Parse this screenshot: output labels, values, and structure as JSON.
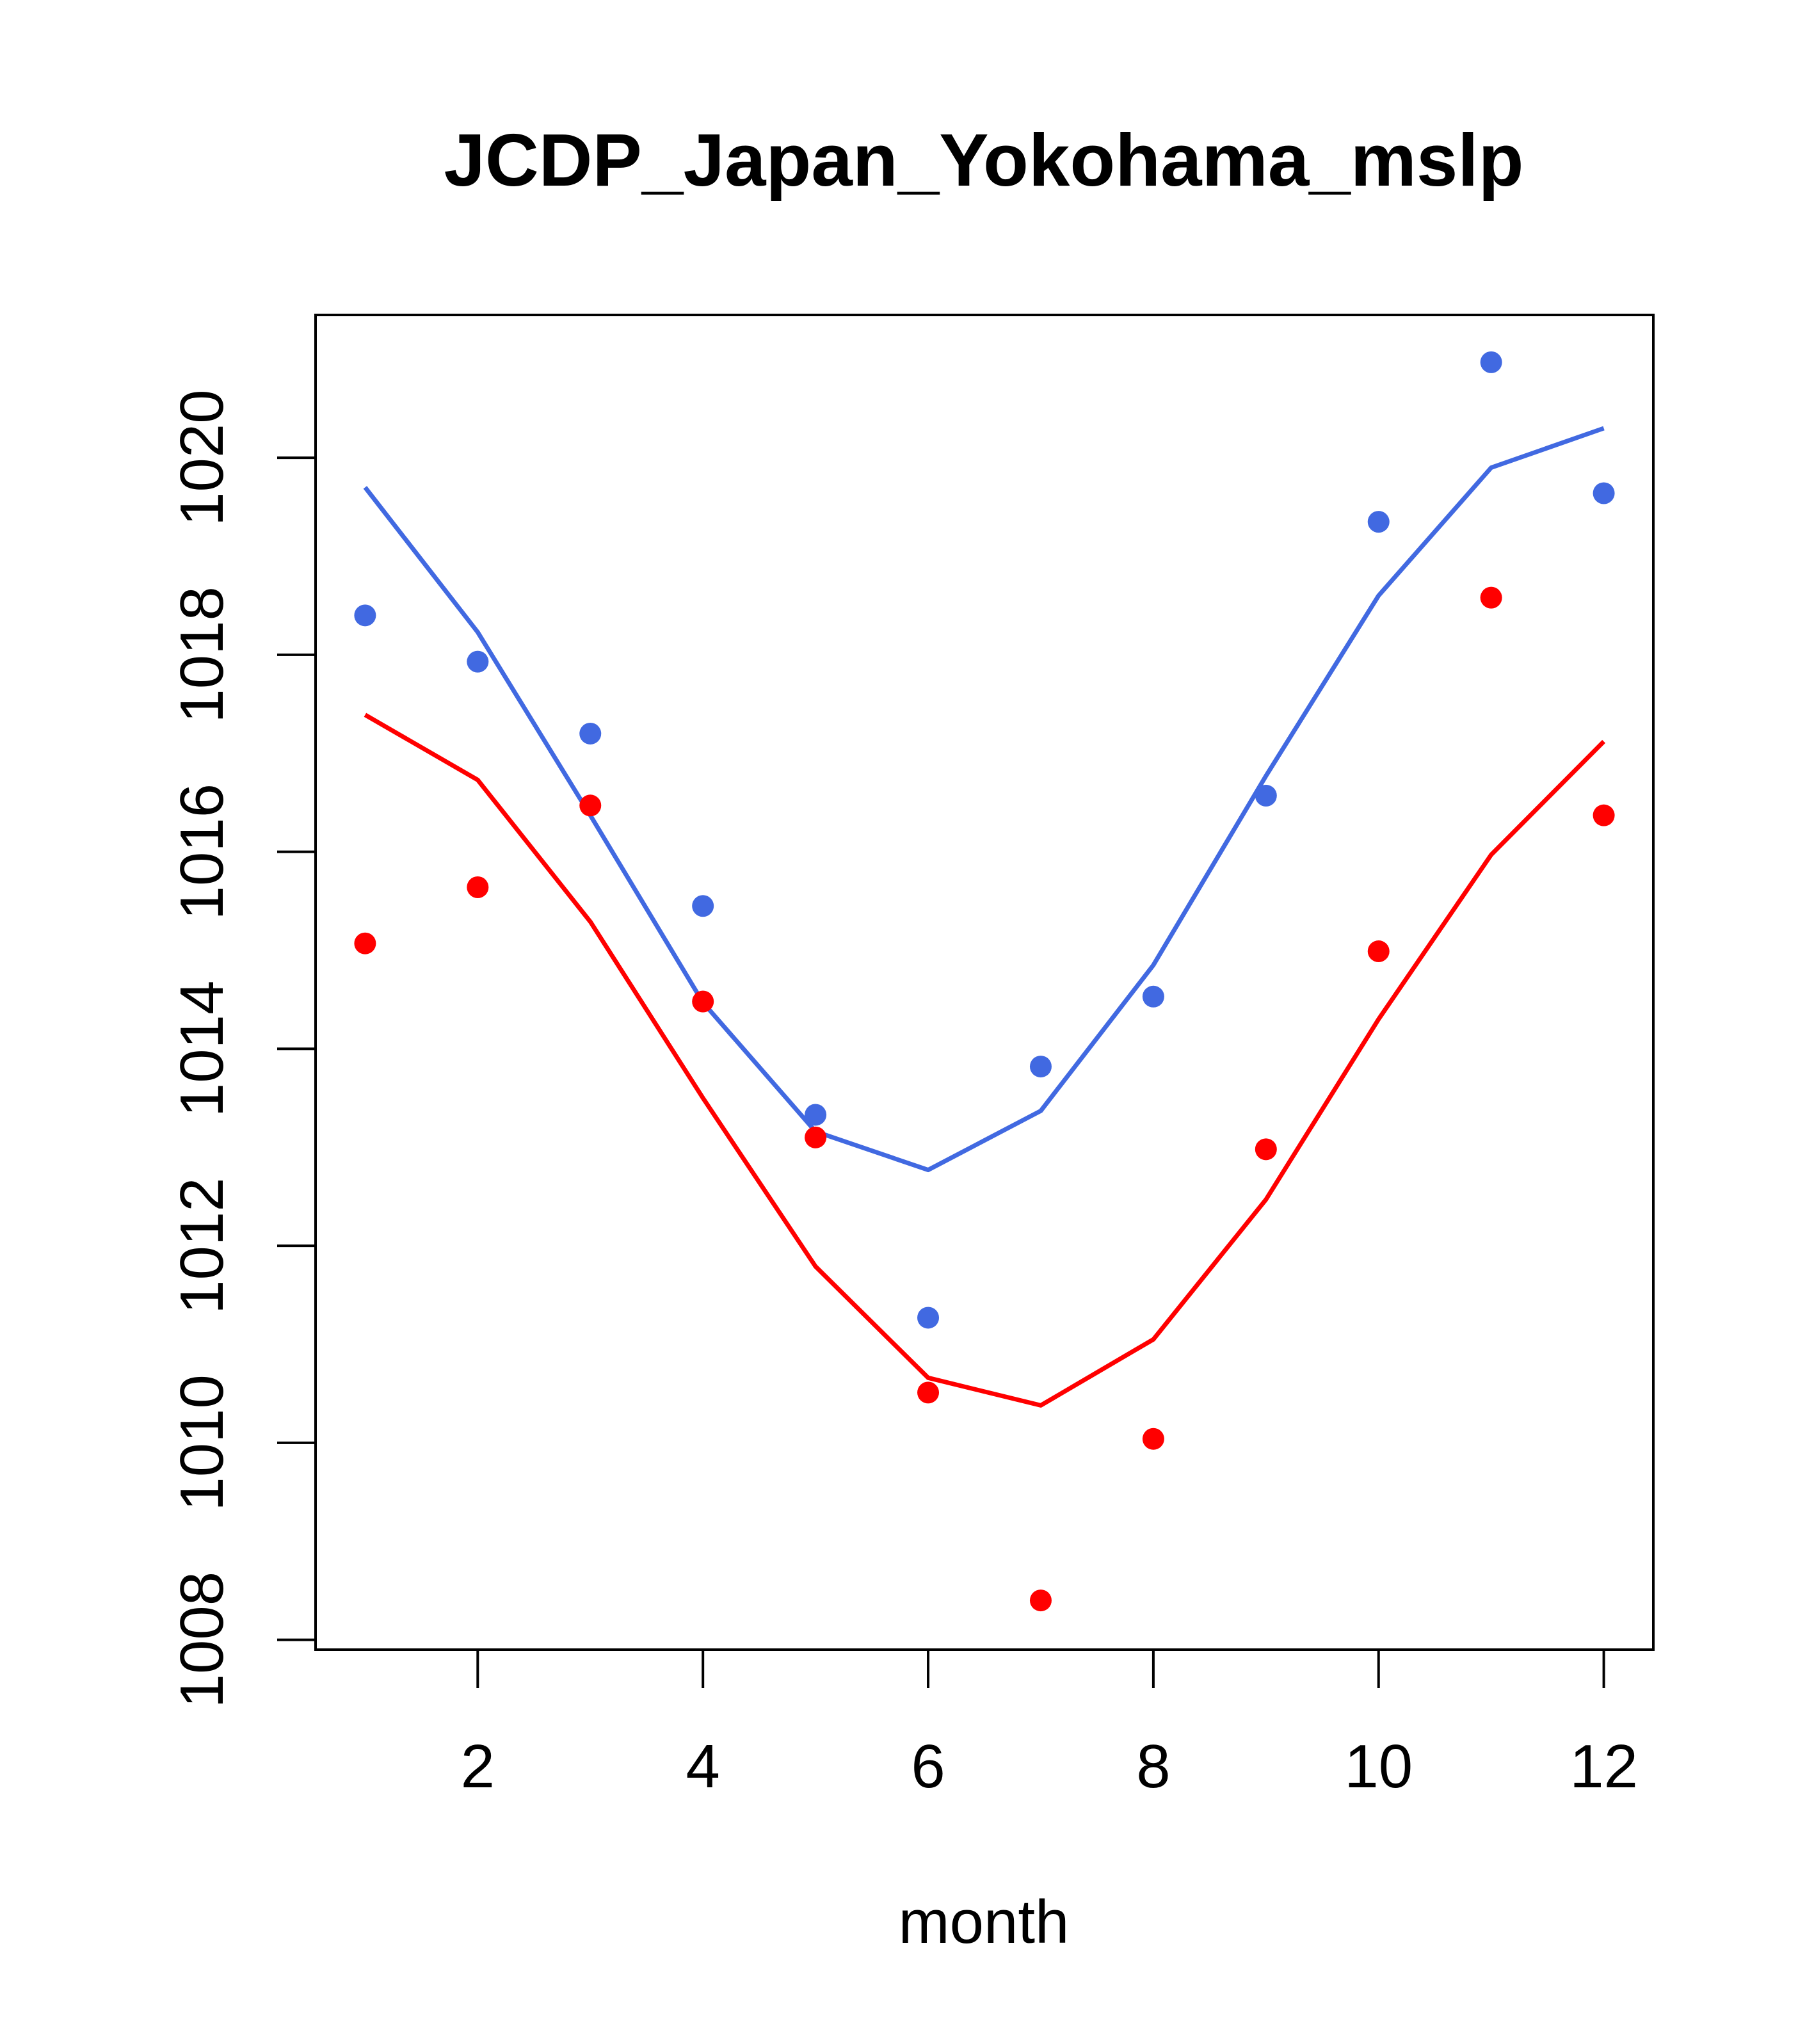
{
  "chart_data": {
    "type": "scatter",
    "title": "JCDP_Japan_Yokohama_mslp",
    "xlabel": "month",
    "ylabel": "",
    "xlim": [
      0.56,
      12.44
    ],
    "ylim": [
      1007.9,
      1021.45
    ],
    "xticks": [
      2,
      4,
      6,
      8,
      10,
      12
    ],
    "xtick_labels": [
      "2",
      "4",
      "6",
      "8",
      "10",
      "12"
    ],
    "yticks": [
      1008,
      1010,
      1012,
      1014,
      1016,
      1018,
      1020
    ],
    "ytick_labels": [
      "1008",
      "1010",
      "1012",
      "1014",
      "1016",
      "1018",
      "1020"
    ],
    "grid": false,
    "legend": null,
    "series": [
      {
        "name": "blue points",
        "kind": "points",
        "color": "#4169E1",
        "x": [
          1,
          2,
          3,
          4,
          5,
          6,
          7,
          8,
          9,
          10,
          11,
          12
        ],
        "y": [
          1018.4,
          1017.93,
          1017.2,
          1015.45,
          1013.33,
          1011.27,
          1013.82,
          1014.53,
          1016.57,
          1019.35,
          1020.97,
          1019.64
        ]
      },
      {
        "name": "blue line",
        "kind": "line",
        "color": "#4169E1",
        "x": [
          1,
          2,
          3,
          4,
          5,
          6,
          7,
          8,
          9,
          10,
          11,
          12
        ],
        "y": [
          1019.7,
          1018.23,
          1016.37,
          1014.47,
          1013.16,
          1012.77,
          1013.37,
          1014.85,
          1016.77,
          1018.6,
          1019.9,
          1020.3
        ]
      },
      {
        "name": "red points",
        "kind": "points",
        "color": "#FF0000",
        "x": [
          1,
          2,
          3,
          4,
          5,
          6,
          7,
          8,
          9,
          10,
          11,
          12
        ],
        "y": [
          1015.07,
          1015.64,
          1016.47,
          1014.48,
          1013.1,
          1010.51,
          1008.4,
          1010.04,
          1012.98,
          1014.99,
          1018.58,
          1016.37
        ]
      },
      {
        "name": "red line",
        "kind": "line",
        "color": "#FF0000",
        "x": [
          1,
          2,
          3,
          4,
          5,
          6,
          7,
          8,
          9,
          10,
          11,
          12
        ],
        "y": [
          1017.39,
          1016.73,
          1015.29,
          1013.5,
          1011.79,
          1010.66,
          1010.38,
          1011.05,
          1012.47,
          1014.3,
          1015.97,
          1017.12
        ]
      }
    ]
  }
}
